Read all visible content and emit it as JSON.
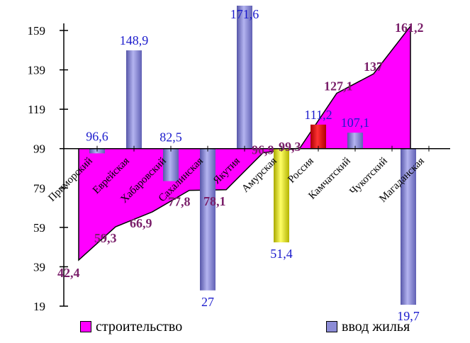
{
  "chart_data": {
    "type": "bar",
    "baseline": 99,
    "ylim": [
      19,
      170
    ],
    "yticks": [
      19,
      39,
      59,
      79,
      99,
      119,
      139,
      159
    ],
    "categories": [
      "Приморский",
      "Еврейская",
      "Хабаровский",
      "Сахалинская",
      "Якутия",
      "Амурская",
      "Россия",
      "Камчатский",
      "Чукотский",
      "Магаданская"
    ],
    "series": [
      {
        "name": "строительство",
        "type": "area",
        "values": [
          42.4,
          59.3,
          66.9,
          77.8,
          78.1,
          96.9,
          99.3,
          127.1,
          137,
          161.2
        ],
        "labels": [
          "42,4",
          "59,3",
          "66,9",
          "77,8",
          "78,1",
          "96,9",
          "99,3",
          "127,1",
          "137",
          "161,2"
        ],
        "color": "#ff00ff",
        "label_color": "#7a1f6a"
      },
      {
        "name": "ввод жилья",
        "type": "bar",
        "values": [
          96.6,
          148.9,
          82.5,
          27,
          171.6,
          51.4,
          111.2,
          107.1,
          null,
          19.7
        ],
        "labels": [
          "96,6",
          "148,9",
          "82,5",
          "27",
          "171,6",
          "51,4",
          "111,2",
          "107,1",
          "",
          "19,7"
        ],
        "bar_colors": [
          "#8c8cd6",
          "#8c8cd6",
          "#8c8cd6",
          "#8c8cd6",
          "#8c8cd6",
          "#e6e600",
          "#dd0000",
          "#8c8cd6",
          "#8c8cd6",
          "#8c8cd6"
        ],
        "label_color": "#1a1acc"
      }
    ],
    "legend": [
      {
        "label": "строительство",
        "color": "#ff00ff"
      },
      {
        "label": "ввод жилья",
        "color": "#8c8cd6"
      }
    ],
    "legend_position": "bottom"
  }
}
